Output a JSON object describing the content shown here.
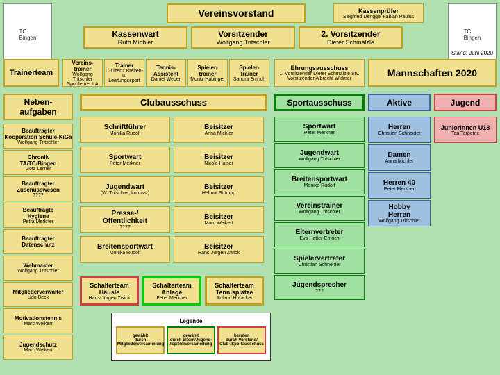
{
  "colors": {
    "bg": "#b0e0b0",
    "yellow": "#f0e090",
    "yellowBorder": "#c0a020",
    "green": "#a0e0a0",
    "greenBorder": "#008000",
    "blue": "#a0c0e0",
    "blueBorder": "#4060a0",
    "pink": "#f0b0b0",
    "red": "#d04040",
    "white": "#ffffff",
    "orange": "#f0c080",
    "brightGreen": "#00d000"
  },
  "header": {
    "main": "Vereinsvorstand",
    "pruef": "Kassenprüfer",
    "pruefSub": "Siegfried Denggel\nFabian Paulus"
  },
  "row2": {
    "kw": "Kassenwart",
    "kwSub": "Ruth Michler",
    "vo": "Vorsitzender",
    "voSub": "Wolfgang Tritschler",
    "v2": "2. Vorsitzender",
    "v2Sub": "Dieter Schmälzle"
  },
  "stand": "Stand: Juni 2020",
  "trainerteam": "Trainerteam",
  "tt": [
    {
      "t": "Vereins-\ntrainer",
      "s": "Wolfgang Tritschler\nSportlehrer LA"
    },
    {
      "t": "Trainer",
      "s": "C-Lizenz Breiten- u.\nLeistungssport"
    },
    {
      "t": "Tennis-\nAssistent",
      "s": "Daniel Weber"
    },
    {
      "t": "Spieler-\ntrainer",
      "s": "Moritz Habinger"
    },
    {
      "t": "Spieler-\ntrainer",
      "s": "Sandra Emrich"
    }
  ],
  "ehr": {
    "t": "Ehrungsausschuss",
    "s": "1. Vorsitzender\nDieter Schmälzle Stv. Vorsitzender\nAlbrecht Widmer"
  },
  "mann": "Mannschaften 2020",
  "neben": "Neben-\naufgaben",
  "club": "Clubausschuss",
  "sport": "Sportausschuss",
  "aktive": "Aktive",
  "jugend": "Jugend",
  "left": [
    {
      "t": "Beauftragter\nKooperation Schule-KiGa",
      "s": "Wolfgang Tritschler"
    },
    {
      "t": "Chronik\nTA/TC-Bingen",
      "s": "Götz Lerner"
    },
    {
      "t": "Beauftragter\nZuschusswesen",
      "s": "????"
    },
    {
      "t": "Beauftragte\nHygiene",
      "s": "Petra Merkner"
    },
    {
      "t": "Beauftragter\nDatenschutz",
      "s": ""
    },
    {
      "t": "Webmaster",
      "s": "Wolfgang Tritschler"
    },
    {
      "t": "Mitgliederverwalter",
      "s": "Udo Beck"
    },
    {
      "t": "Motivationstennis",
      "s": "Marc Weikert"
    },
    {
      "t": "Jugendschutz",
      "s": "Marc Weikert"
    }
  ],
  "mid": [
    [
      {
        "t": "Schriftführer",
        "s": "Monika Rudolf"
      },
      {
        "t": "Beisitzer",
        "s": "Anna Michler"
      }
    ],
    [
      {
        "t": "Sportwart",
        "s": "Peter Merkner"
      },
      {
        "t": "Beisitzer",
        "s": "Nicole Haiser"
      }
    ],
    [
      {
        "t": "Jugendwart",
        "s": "(W. Tritschler, komiss.)"
      },
      {
        "t": "Beisitzer",
        "s": "Helmut Stümpp"
      }
    ],
    [
      {
        "t": "Presse-/\nÖffentlichkeit",
        "s": "????"
      },
      {
        "t": "Beisitzer",
        "s": "Marc Weikert"
      }
    ],
    [
      {
        "t": "Breitensportwart",
        "s": "Monika Rudolf"
      },
      {
        "t": "Beisitzer",
        "s": "Hans-Jürgen Zwick"
      }
    ]
  ],
  "sportCol": [
    {
      "t": "Sportwart",
      "s": "Peter Merkner"
    },
    {
      "t": "Jugendwart",
      "s": "Wolfgang Tritschler"
    },
    {
      "t": "Breitensportwart",
      "s": "Monika Rudolf"
    },
    {
      "t": "Vereinstrainer",
      "s": "Wolfgang Tritschler"
    },
    {
      "t": "Elternvertreter",
      "s": "Eva Hatter-Emrich"
    },
    {
      "t": "Spielervertreter",
      "s": "Christian Schneider"
    },
    {
      "t": "Jugendsprecher",
      "s": "???"
    }
  ],
  "aktCol": [
    {
      "t": "Herren",
      "s": "Christian Schneider"
    },
    {
      "t": "Damen",
      "s": "Anna Michler"
    },
    {
      "t": "Herren 40",
      "s": "Peter Merkner"
    },
    {
      "t": "Hobby\nHerren",
      "s": "Wolfgang Tritschler"
    }
  ],
  "jugCol": [
    {
      "t": "Juniorinnen U18",
      "s": "Tea Terpetric"
    }
  ],
  "schalt": [
    {
      "t": "Schalterteam\nHäusle",
      "s": "Hans-Jürgen Zwick"
    },
    {
      "t": "Schalterteam\nAnlage",
      "s": "Peter Merkner"
    },
    {
      "t": "Schalterteam\nTennisplätze",
      "s": "Roland Hofacker"
    }
  ],
  "legend": {
    "title": "Legende",
    "items": [
      {
        "t": "gewählt\ndurch\nMitgliederversammlung"
      },
      {
        "t": "gewählt\ndurch Eltern/Jugend-\n/Spielerversammlung"
      },
      {
        "t": "berufen\ndurch Vorstand/\nClub-/Sportausschuss"
      }
    ]
  }
}
